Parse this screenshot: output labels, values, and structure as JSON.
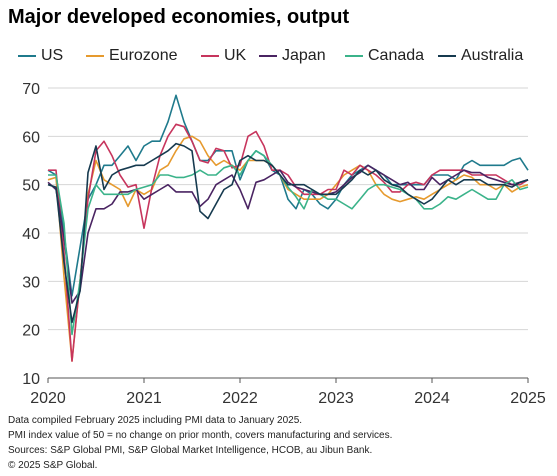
{
  "chart_data": {
    "type": "line",
    "title": "Major developed economies, output",
    "xlabel": "",
    "ylabel": "",
    "ylim": [
      10,
      70
    ],
    "yticks": [
      10,
      20,
      30,
      40,
      50,
      60,
      70
    ],
    "xlim": [
      2020.0,
      2025.0
    ],
    "xticks": [
      "2020",
      "2021",
      "2022",
      "2023",
      "2024",
      "2025"
    ],
    "grid": "horizontal",
    "legend_position": "top",
    "series": [
      {
        "name": "US",
        "color": "#1f7a8c",
        "x": [
          2020.0,
          2020.083,
          2020.167,
          2020.25,
          2020.333,
          2020.417,
          2020.5,
          2020.583,
          2020.667,
          2020.75,
          2020.833,
          2020.917,
          2021.0,
          2021.083,
          2021.167,
          2021.25,
          2021.333,
          2021.417,
          2021.5,
          2021.583,
          2021.667,
          2021.75,
          2021.833,
          2021.917,
          2022.0,
          2022.083,
          2022.167,
          2022.25,
          2022.333,
          2022.417,
          2022.5,
          2022.583,
          2022.667,
          2022.75,
          2022.833,
          2022.917,
          2023.0,
          2023.083,
          2023.167,
          2023.25,
          2023.333,
          2023.417,
          2023.5,
          2023.583,
          2023.667,
          2023.75,
          2023.833,
          2023.917,
          2024.0,
          2024.083,
          2024.167,
          2024.25,
          2024.333,
          2024.417,
          2024.5,
          2024.583,
          2024.667,
          2024.75,
          2024.833,
          2024.917,
          2025.0
        ],
        "values": [
          53,
          52,
          40,
          27,
          37,
          47,
          50,
          54,
          54,
          56,
          58,
          55,
          58,
          59,
          59,
          63,
          68.5,
          63,
          59,
          55,
          55,
          57,
          57,
          57,
          51,
          55,
          57,
          56,
          53,
          52,
          47,
          45,
          49,
          48,
          46,
          45,
          47,
          50,
          52,
          53,
          54,
          53,
          52,
          50,
          50,
          50,
          50,
          50,
          52,
          52,
          52,
          51,
          54,
          55,
          54,
          54,
          54,
          54,
          55,
          55.5,
          53
        ]
      },
      {
        "name": "Eurozone",
        "color": "#e69a2e",
        "x": [
          2020.0,
          2020.083,
          2020.167,
          2020.25,
          2020.333,
          2020.417,
          2020.5,
          2020.583,
          2020.667,
          2020.75,
          2020.833,
          2020.917,
          2021.0,
          2021.083,
          2021.167,
          2021.25,
          2021.333,
          2021.417,
          2021.5,
          2021.583,
          2021.667,
          2021.75,
          2021.833,
          2021.917,
          2022.0,
          2022.083,
          2022.167,
          2022.25,
          2022.333,
          2022.417,
          2022.5,
          2022.583,
          2022.667,
          2022.75,
          2022.833,
          2022.917,
          2023.0,
          2023.083,
          2023.167,
          2023.25,
          2023.333,
          2023.417,
          2023.5,
          2023.583,
          2023.667,
          2023.75,
          2023.833,
          2023.917,
          2024.0,
          2024.083,
          2024.167,
          2024.25,
          2024.333,
          2024.417,
          2024.5,
          2024.583,
          2024.667,
          2024.75,
          2024.833,
          2024.917,
          2025.0
        ],
        "values": [
          51,
          51.5,
          31,
          13.5,
          30,
          48,
          55,
          51,
          50,
          49,
          45.5,
          49,
          48,
          49,
          53,
          54,
          57,
          59.5,
          60,
          59,
          56,
          54,
          55,
          54,
          53,
          55,
          55,
          55,
          54,
          52,
          49,
          48,
          47,
          47,
          47,
          48,
          50,
          52,
          53,
          54,
          53,
          50,
          48,
          47,
          46.5,
          47,
          47.5,
          47,
          48,
          49,
          50,
          51,
          52,
          51.5,
          50,
          50,
          49,
          50,
          48.5,
          49.5,
          50
        ]
      },
      {
        "name": "UK",
        "color": "#c7355d",
        "x": [
          2020.0,
          2020.083,
          2020.167,
          2020.25,
          2020.333,
          2020.417,
          2020.5,
          2020.583,
          2020.667,
          2020.75,
          2020.833,
          2020.917,
          2021.0,
          2021.083,
          2021.167,
          2021.25,
          2021.333,
          2021.417,
          2021.5,
          2021.583,
          2021.667,
          2021.75,
          2021.833,
          2021.917,
          2022.0,
          2022.083,
          2022.167,
          2022.25,
          2022.333,
          2022.417,
          2022.5,
          2022.583,
          2022.667,
          2022.75,
          2022.833,
          2022.917,
          2023.0,
          2023.083,
          2023.167,
          2023.25,
          2023.333,
          2023.417,
          2023.5,
          2023.583,
          2023.667,
          2023.75,
          2023.833,
          2023.917,
          2024.0,
          2024.083,
          2024.167,
          2024.25,
          2024.333,
          2024.417,
          2024.5,
          2024.583,
          2024.667,
          2024.75,
          2024.833,
          2024.917,
          2025.0
        ],
        "values": [
          53,
          53,
          36,
          13.5,
          30,
          47,
          57,
          59,
          56,
          52,
          49.5,
          50,
          41,
          49.5,
          56,
          60,
          62.5,
          62,
          59,
          55,
          54.5,
          57.5,
          57,
          53.5,
          54,
          60,
          61,
          58,
          53,
          53,
          52,
          49.5,
          48,
          48,
          48,
          49,
          49,
          53,
          52,
          54,
          53,
          52,
          50.5,
          48.5,
          48.5,
          50,
          50.5,
          50,
          52,
          53,
          53,
          53,
          53,
          52,
          52,
          52,
          52,
          51,
          50,
          50,
          51
        ]
      },
      {
        "name": "Japan",
        "color": "#4a2462",
        "x": [
          2020.0,
          2020.083,
          2020.167,
          2020.25,
          2020.333,
          2020.417,
          2020.5,
          2020.583,
          2020.667,
          2020.75,
          2020.833,
          2020.917,
          2021.0,
          2021.083,
          2021.167,
          2021.25,
          2021.333,
          2021.417,
          2021.5,
          2021.583,
          2021.667,
          2021.75,
          2021.833,
          2021.917,
          2022.0,
          2022.083,
          2022.167,
          2022.25,
          2022.333,
          2022.417,
          2022.5,
          2022.583,
          2022.667,
          2022.75,
          2022.833,
          2022.917,
          2023.0,
          2023.083,
          2023.167,
          2023.25,
          2023.333,
          2023.417,
          2023.5,
          2023.583,
          2023.667,
          2023.75,
          2023.833,
          2023.917,
          2024.0,
          2024.083,
          2024.167,
          2024.25,
          2024.333,
          2024.417,
          2024.5,
          2024.583,
          2024.667,
          2024.75,
          2024.833,
          2024.917,
          2025.0
        ],
        "values": [
          50.5,
          49,
          39,
          25.5,
          28,
          40,
          45,
          45,
          46,
          48.5,
          48.5,
          49,
          47,
          48,
          49,
          50,
          48.5,
          48.5,
          48.5,
          45.5,
          47,
          50,
          51,
          52,
          49,
          45,
          50.5,
          51,
          52,
          53,
          50.5,
          49.5,
          49,
          48.5,
          48,
          48,
          48.5,
          50,
          51.5,
          52.5,
          54,
          53,
          52,
          51,
          50,
          50.5,
          49,
          49,
          51.5,
          50,
          51,
          52,
          53,
          52.5,
          52.5,
          51.5,
          51,
          50.5,
          50,
          50.5,
          51
        ]
      },
      {
        "name": "Canada",
        "color": "#3bb38a",
        "x": [
          2020.0,
          2020.083,
          2020.167,
          2020.25,
          2020.333,
          2020.417,
          2020.5,
          2020.583,
          2020.667,
          2020.75,
          2020.833,
          2020.917,
          2021.0,
          2021.083,
          2021.167,
          2021.25,
          2021.333,
          2021.417,
          2021.5,
          2021.583,
          2021.667,
          2021.75,
          2021.833,
          2021.917,
          2022.0,
          2022.083,
          2022.167,
          2022.25,
          2022.333,
          2022.417,
          2022.5,
          2022.583,
          2022.667,
          2022.75,
          2022.833,
          2022.917,
          2023.0,
          2023.083,
          2023.167,
          2023.25,
          2023.333,
          2023.417,
          2023.5,
          2023.583,
          2023.667,
          2023.75,
          2023.833,
          2023.917,
          2024.0,
          2024.083,
          2024.167,
          2024.25,
          2024.333,
          2024.417,
          2024.5,
          2024.583,
          2024.667,
          2024.75,
          2024.833,
          2024.917,
          2025.0
        ],
        "values": [
          52,
          52,
          42,
          19,
          30,
          45,
          50,
          48,
          48,
          48,
          48,
          49,
          49.5,
          50,
          52,
          52,
          51.5,
          51.5,
          52,
          53,
          52,
          52,
          53.5,
          54,
          52,
          55,
          57,
          56,
          54,
          52,
          49.5,
          47.5,
          45,
          49,
          48,
          47,
          47,
          46,
          45,
          47,
          49,
          50,
          50,
          49.5,
          49,
          48,
          47,
          45,
          45,
          46,
          47.5,
          47,
          48,
          49,
          48,
          47,
          47,
          50,
          51,
          49,
          49.5
        ]
      },
      {
        "name": "Australia",
        "color": "#163a4f",
        "x": [
          2020.0,
          2020.083,
          2020.167,
          2020.25,
          2020.333,
          2020.417,
          2020.5,
          2020.583,
          2020.667,
          2020.75,
          2020.833,
          2020.917,
          2021.0,
          2021.083,
          2021.167,
          2021.25,
          2021.333,
          2021.417,
          2021.5,
          2021.583,
          2021.667,
          2021.75,
          2021.833,
          2021.917,
          2022.0,
          2022.083,
          2022.167,
          2022.25,
          2022.333,
          2022.417,
          2022.5,
          2022.583,
          2022.667,
          2022.75,
          2022.833,
          2022.917,
          2023.0,
          2023.083,
          2023.167,
          2023.25,
          2023.333,
          2023.417,
          2023.5,
          2023.583,
          2023.667,
          2023.75,
          2023.833,
          2023.917,
          2024.0,
          2024.083,
          2024.167,
          2024.25,
          2024.333,
          2024.417,
          2024.5,
          2024.583,
          2024.667,
          2024.75,
          2024.833,
          2024.917,
          2025.0
        ],
        "values": [
          50,
          49.5,
          34,
          21.5,
          28,
          52.5,
          58,
          49,
          52,
          53,
          53.5,
          54,
          54,
          55,
          56,
          57,
          58.5,
          58,
          57,
          44.5,
          43,
          46,
          49,
          50,
          55,
          56,
          55,
          55,
          54,
          52,
          50,
          50,
          50,
          49,
          48,
          48,
          48,
          49.5,
          51,
          53,
          52,
          53,
          51,
          50,
          49.5,
          48,
          47,
          46,
          47,
          49,
          51,
          50,
          51,
          51,
          51,
          50,
          50,
          50,
          49.5,
          50.5,
          51
        ]
      }
    ]
  },
  "notes": [
    "Data compiled February 2025 including PMI data to January 2025.",
    "PMI index value of 50 = no change on prior month, covers manufacturing and services.",
    "Sources: S&P Global PMI, S&P Global Market Intelligence, HCOB, au Jibun Bank.",
    "© 2025 S&P Global."
  ]
}
